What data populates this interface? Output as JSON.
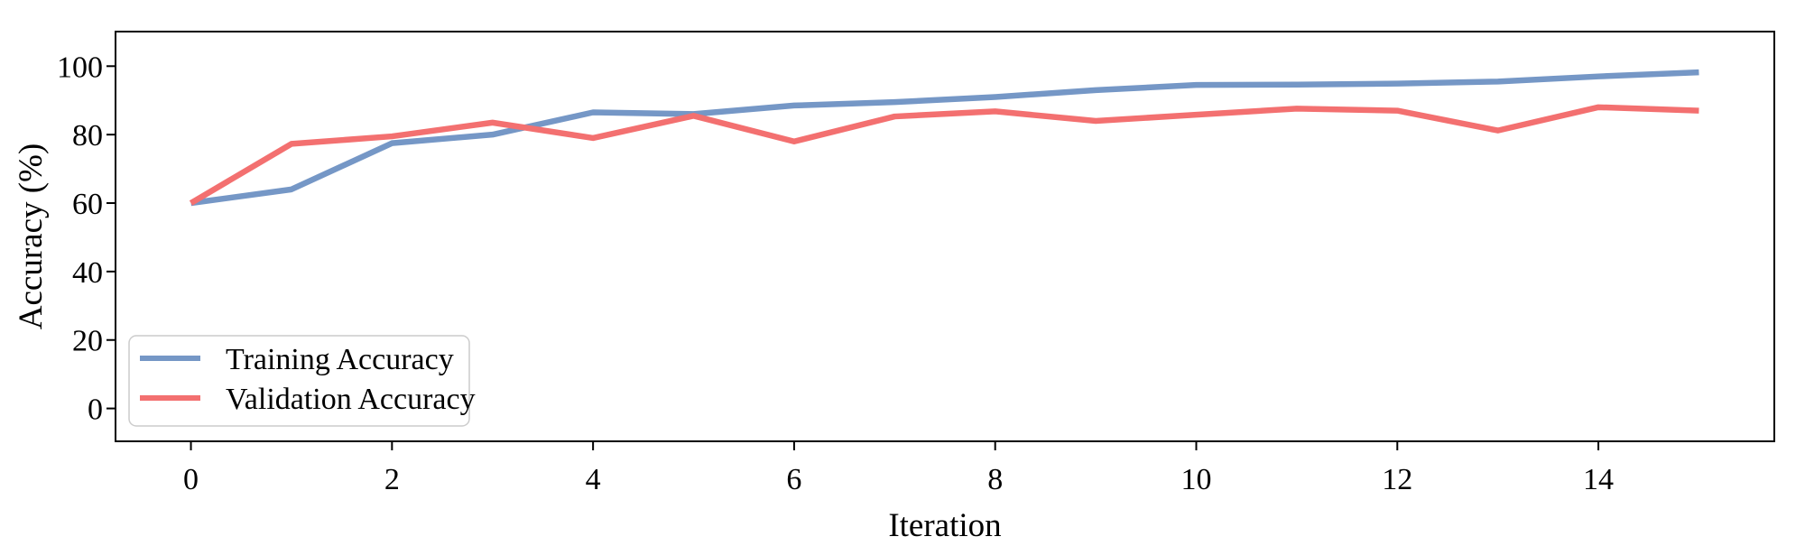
{
  "figure": {
    "background": "#ffffff",
    "spine_color": "#000000",
    "tick_color": "#000000",
    "legend_border_color": "#cccccc",
    "legend_background": "#ffffff"
  },
  "chart_data": {
    "type": "line",
    "title": "",
    "xlabel": "Iteration",
    "ylabel": "Accuracy (%)",
    "x": [
      0,
      1,
      2,
      3,
      4,
      5,
      6,
      7,
      8,
      9,
      10,
      11,
      12,
      13,
      14,
      15
    ],
    "series": [
      {
        "name": "Training Accuracy",
        "color": "#7597C6",
        "values": [
          60,
          64,
          77.5,
          80,
          86.5,
          86,
          88.5,
          89.5,
          91,
          93,
          94.5,
          94.6,
          94.9,
          95.5,
          97,
          98.2
        ]
      },
      {
        "name": "Validation Accuracy",
        "color": "#F37070",
        "values": [
          60,
          77.3,
          79.5,
          83.5,
          79,
          85.5,
          78,
          85.3,
          86.8,
          84,
          85.8,
          87.6,
          87,
          81.2,
          88,
          87
        ]
      }
    ],
    "xticks": [
      0,
      2,
      4,
      6,
      8,
      10,
      12,
      14
    ],
    "yticks": [
      0,
      20,
      40,
      60,
      80,
      100
    ],
    "xlim": [
      -0.75,
      15.75
    ],
    "ylim": [
      -9.6,
      110.1
    ],
    "grid": false,
    "legend": {
      "position": "lower-left",
      "entries": [
        "Training Accuracy",
        "Validation Accuracy"
      ]
    }
  }
}
